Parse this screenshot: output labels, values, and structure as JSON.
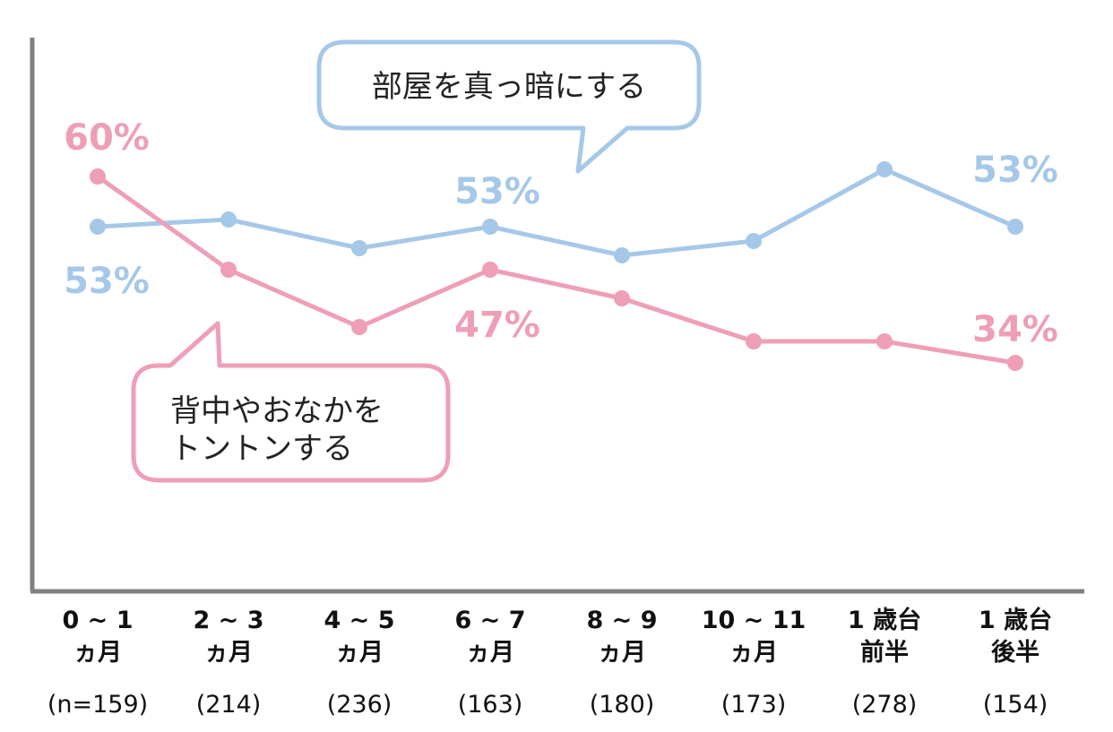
{
  "chart_data": {
    "type": "line",
    "categories": [
      [
        "0 ~ 1",
        "ヵ月"
      ],
      [
        "2 ~ 3",
        "ヵ月"
      ],
      [
        "4 ~ 5",
        "ヵ月"
      ],
      [
        "6 ~ 7",
        "ヵ月"
      ],
      [
        "8 ~ 9",
        "ヵ月"
      ],
      [
        "10 ~ 11",
        "ヵ月"
      ],
      [
        "1 歳台",
        "前半"
      ],
      [
        "1 歳台",
        "後半"
      ]
    ],
    "sample_sizes": [
      "(n=159)",
      "(214)",
      "(236)",
      "(163)",
      "(180)",
      "(173)",
      "(278)",
      "(154)"
    ],
    "series": [
      {
        "name": "部屋を真っ暗にする",
        "color": "#a6c8e8",
        "values": [
          53,
          54,
          50,
          53,
          49,
          51,
          61,
          53
        ],
        "data_labels": [
          {
            "index": 0,
            "text": "53%"
          },
          {
            "index": 3,
            "text": "53%"
          },
          {
            "index": 7,
            "text": "53%"
          }
        ]
      },
      {
        "name": "背中やおなかをトントンする",
        "color": "#ee9fb5",
        "values": [
          60,
          47,
          39,
          47,
          43,
          37,
          37,
          34
        ],
        "data_labels": [
          {
            "index": 0,
            "text": "60%"
          },
          {
            "index": 3,
            "text": "47%"
          },
          {
            "index": 7,
            "text": "34%"
          }
        ]
      }
    ],
    "ylim": [
      0,
      70
    ],
    "grid": false,
    "axis_color": "#808080"
  },
  "callouts": {
    "blue": [
      "部屋を真っ暗にする"
    ],
    "pink": [
      "背中やおなかを",
      "トントンする"
    ]
  }
}
